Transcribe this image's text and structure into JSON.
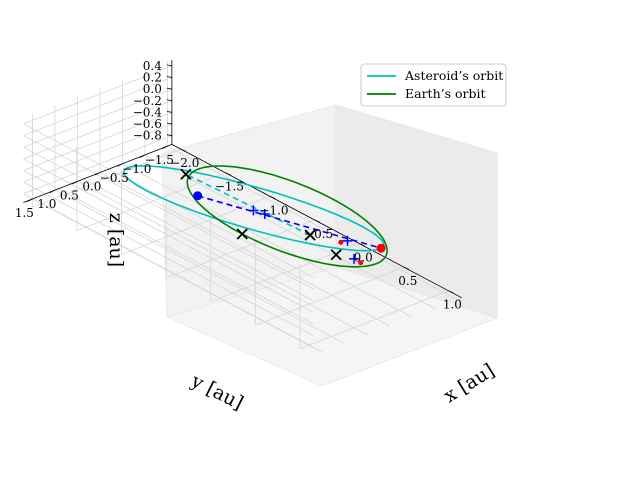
{
  "chart_data": {
    "type": "line-3d",
    "title": "",
    "xlabel": "$x$ [au]",
    "ylabel": "$y$ [au]",
    "zlabel": "$z$ [au]",
    "xlabel_text": "x [au]",
    "ylabel_text": "y [au]",
    "zlabel_text": "z [au]",
    "xlim": [
      -2.1,
      1.15
    ],
    "ylim": [
      -1.6,
      1.7
    ],
    "zlim": [
      -0.95,
      0.5
    ],
    "xticks": [
      "−2.0",
      "−1.5",
      "−1.0",
      "−0.5",
      "0.0",
      "0.5",
      "1.0"
    ],
    "yticks": [
      "1.5",
      "1.0",
      "0.5",
      "0.0",
      "−0.5",
      "−1.0",
      "−1.5"
    ],
    "zticks": [
      "0.4",
      "0.2",
      "0.0",
      "−0.2",
      "−0.4",
      "−0.6",
      "−0.8"
    ],
    "xtick_values": [
      -2.0,
      -1.5,
      -1.0,
      -0.5,
      0.0,
      0.5,
      1.0
    ],
    "ytick_values": [
      1.5,
      1.0,
      0.5,
      0.0,
      -0.5,
      -1.0,
      -1.5
    ],
    "ztick_values": [
      0.4,
      0.2,
      0.0,
      -0.2,
      -0.4,
      -0.6,
      -0.8
    ],
    "grid": true,
    "legend_placement": "upper-right",
    "series": [
      {
        "name": "Asteroid’s orbit",
        "color": "#00bfbf",
        "kind": "ellipse",
        "center": [
          -0.4,
          -0.05,
          -0.2
        ],
        "semi_axis_1": [
          1.45,
          0.5,
          0.6
        ],
        "semi_axis_2": [
          -0.35,
          0.95,
          0.05
        ]
      },
      {
        "name": "Earth’s orbit",
        "color": "#008000",
        "kind": "circle",
        "center": [
          0,
          0,
          0
        ],
        "radius": 1.0
      }
    ],
    "line_of_nodes": {
      "color": "#00bfbf",
      "style": "dashed",
      "from": [
        0.62,
        0.72,
        0.4
      ],
      "to": [
        -1.55,
        -0.82,
        -0.78
      ]
    },
    "connector": {
      "color": "#0000ff",
      "style": "dashed",
      "from": [
        -0.55,
        0.9,
        0.18
      ],
      "to": [
        0.75,
        -0.6,
        -0.12
      ]
    },
    "markers": {
      "asteroid_point": {
        "color": "#0000ff",
        "shape": "circle",
        "position": [
          -0.55,
          0.9,
          0.18
        ]
      },
      "earth_point": {
        "color": "#ff0000",
        "shape": "circle",
        "position": [
          0.75,
          -0.6,
          -0.12
        ]
      },
      "black_crosses": [
        [
          0.62,
          0.72,
          0.4
        ],
        [
          -1.55,
          -0.82,
          -0.78
        ],
        [
          0.0,
          1.0,
          0.0
        ],
        [
          0.7,
          0.3,
          0.0
        ]
      ],
      "blue_plus": [
        [
          0.05,
          0.85,
          0.4
        ],
        [
          -0.1,
          0.3,
          0.05
        ],
        [
          0.85,
          0.2,
          0.02
        ],
        [
          0.55,
          -0.25,
          -0.05
        ]
      ],
      "red_small": [
        [
          0.95,
          0.25,
          0.05
        ],
        [
          0.5,
          -0.2,
          -0.1
        ]
      ]
    }
  }
}
